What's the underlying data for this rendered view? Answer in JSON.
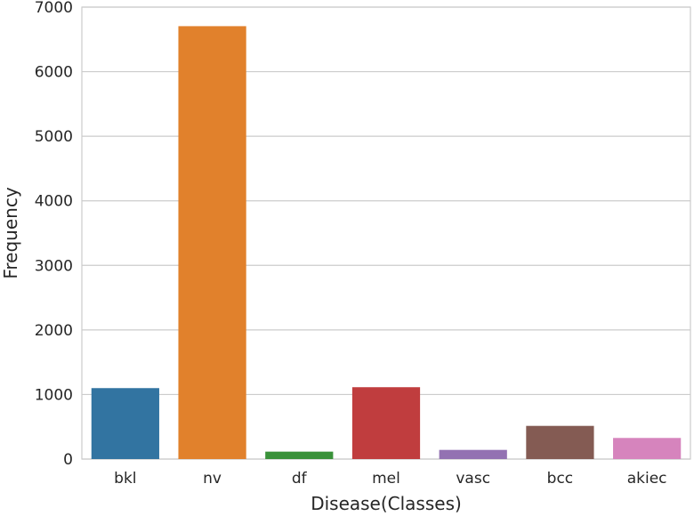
{
  "chart_data": {
    "type": "bar",
    "title": "",
    "xlabel": "Disease(Classes)",
    "ylabel": "Frequency",
    "categories": [
      "bkl",
      "nv",
      "df",
      "mel",
      "vasc",
      "bcc",
      "akiec"
    ],
    "values": [
      1099,
      6705,
      115,
      1113,
      142,
      514,
      327
    ],
    "colors": [
      "#3274a1",
      "#e1812c",
      "#3a923a",
      "#c03d3e",
      "#9372b2",
      "#845b53",
      "#d684bd"
    ],
    "ylim": [
      0,
      7000
    ],
    "yticks": [
      0,
      1000,
      2000,
      3000,
      4000,
      5000,
      6000,
      7000
    ],
    "ytick_labels": [
      "0",
      "1000",
      "2000",
      "3000",
      "4000",
      "5000",
      "6000",
      "7000"
    ],
    "grid": "horizontal"
  }
}
